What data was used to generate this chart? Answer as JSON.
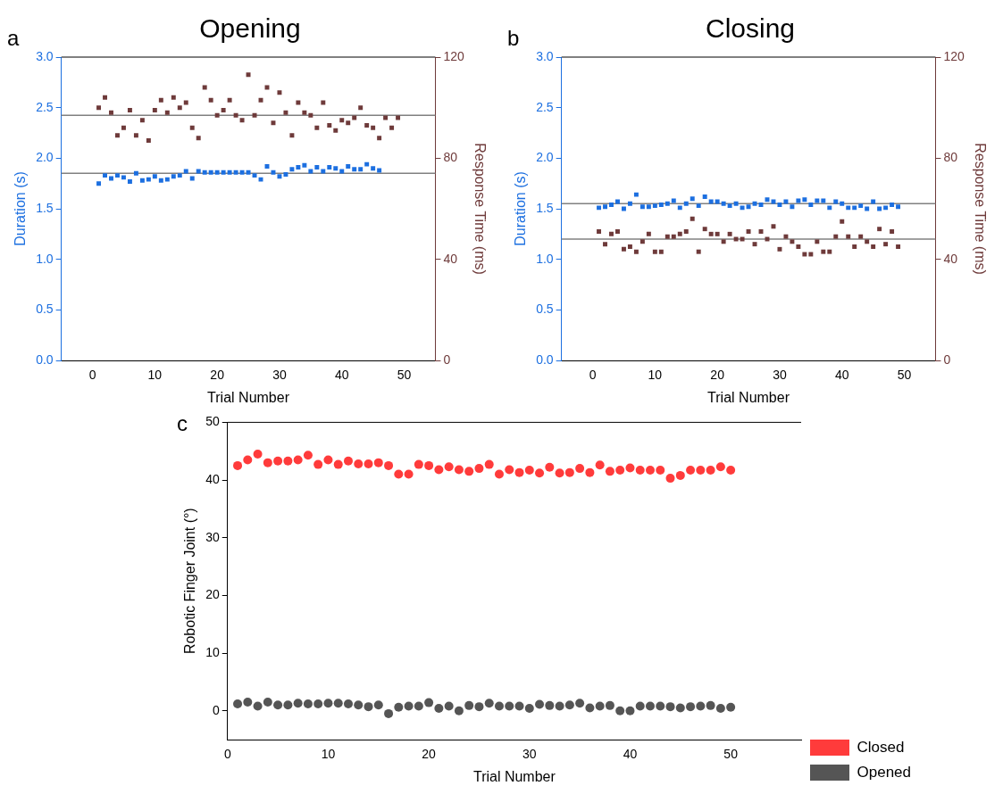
{
  "chart_data": [
    {
      "type": "scatter",
      "title": "Opening",
      "xlabel": "Trial Number",
      "ylabel": "Duration (s)",
      "y2label": "Response Time (ms)",
      "annotations": [
        "a"
      ],
      "marker": "square",
      "grid": false,
      "xlim": [
        -5,
        55
      ],
      "xticks": [
        0,
        10,
        20,
        30,
        40,
        50
      ],
      "ylim": [
        0,
        3
      ],
      "yticks": [
        {
          "value": 0,
          "label": "0.0"
        },
        0.5,
        {
          "value": 1,
          "label": "1.0"
        },
        1.5,
        {
          "value": 2,
          "label": "2.0"
        },
        2.5,
        {
          "value": 3,
          "label": "3.0"
        }
      ],
      "y2lim": [
        0,
        120
      ],
      "y2ticks": [
        0,
        40,
        80,
        120
      ],
      "ref_lines": [
        {
          "axis": "y",
          "value": 1.85,
          "color": "#808080"
        },
        {
          "axis": "y2",
          "value": 97,
          "color": "#808080"
        }
      ],
      "series": [
        {
          "color": "#1c6fe0",
          "x": [
            1,
            2,
            3,
            4,
            5,
            6,
            7,
            8,
            9,
            10,
            11,
            12,
            13,
            14,
            15,
            16,
            17,
            18,
            19,
            20,
            21,
            22,
            23,
            24,
            25,
            26,
            27,
            28,
            29,
            30,
            31,
            32,
            33,
            34,
            35,
            36,
            37,
            38,
            39,
            40,
            41,
            42,
            43,
            44,
            45,
            46
          ],
          "values": [
            1.75,
            1.83,
            1.8,
            1.83,
            1.81,
            1.77,
            1.85,
            1.78,
            1.79,
            1.82,
            1.78,
            1.79,
            1.82,
            1.83,
            1.87,
            1.8,
            1.87,
            1.86,
            1.86,
            1.86,
            1.86,
            1.86,
            1.86,
            1.86,
            1.86,
            1.83,
            1.79,
            1.92,
            1.86,
            1.82,
            1.84,
            1.89,
            1.91,
            1.93,
            1.87,
            1.91,
            1.87,
            1.91,
            1.9,
            1.87,
            1.92,
            1.89,
            1.89,
            1.94,
            1.9,
            1.88
          ]
        },
        {
          "color": "#6e3a3a",
          "axis": "y2",
          "x": [
            1,
            2,
            3,
            4,
            5,
            6,
            7,
            8,
            9,
            10,
            11,
            12,
            13,
            14,
            15,
            16,
            17,
            18,
            19,
            20,
            21,
            22,
            23,
            24,
            25,
            26,
            27,
            28,
            29,
            30,
            31,
            32,
            33,
            34,
            35,
            36,
            37,
            38,
            39,
            40,
            41,
            42,
            43,
            44,
            45,
            46,
            47,
            48,
            49
          ],
          "values": [
            100,
            104,
            98,
            89,
            92,
            99,
            89,
            95,
            87,
            99,
            103,
            98,
            104,
            100,
            102,
            92,
            88,
            108,
            103,
            97,
            99,
            103,
            97,
            95,
            113,
            97,
            103,
            108,
            94,
            106,
            98,
            89,
            102,
            98,
            97,
            92,
            102,
            93,
            91,
            95,
            94,
            96,
            100,
            93,
            92,
            88,
            96,
            92,
            96
          ]
        }
      ]
    },
    {
      "type": "scatter",
      "title": "Closing",
      "xlabel": "Trial Number",
      "ylabel": "Duration (s)",
      "y2label": "Response Time (ms)",
      "annotations": [
        "b"
      ],
      "marker": "square",
      "grid": false,
      "xlim": [
        -5,
        55
      ],
      "xticks": [
        0,
        10,
        20,
        30,
        40,
        50
      ],
      "ylim": [
        0,
        3
      ],
      "yticks": [
        {
          "value": 0,
          "label": "0.0"
        },
        0.5,
        {
          "value": 1,
          "label": "1.0"
        },
        1.5,
        {
          "value": 2,
          "label": "2.0"
        },
        2.5,
        {
          "value": 3,
          "label": "3.0"
        }
      ],
      "y2lim": [
        0,
        120
      ],
      "y2ticks": [
        0,
        40,
        80,
        120
      ],
      "ref_lines": [
        {
          "axis": "y",
          "value": 1.55,
          "color": "#808080"
        },
        {
          "axis": "y2",
          "value": 48,
          "color": "#808080"
        }
      ],
      "series": [
        {
          "color": "#1c6fe0",
          "x": [
            1,
            2,
            3,
            4,
            5,
            6,
            7,
            8,
            9,
            10,
            11,
            12,
            13,
            14,
            15,
            16,
            17,
            18,
            19,
            20,
            21,
            22,
            23,
            24,
            25,
            26,
            27,
            28,
            29,
            30,
            31,
            32,
            33,
            34,
            35,
            36,
            37,
            38,
            39,
            40,
            41,
            42,
            43,
            44,
            45,
            46,
            47,
            48,
            49
          ],
          "values": [
            1.51,
            1.52,
            1.54,
            1.57,
            1.5,
            1.55,
            1.64,
            1.52,
            1.52,
            1.53,
            1.54,
            1.55,
            1.58,
            1.51,
            1.55,
            1.6,
            1.53,
            1.62,
            1.57,
            1.57,
            1.55,
            1.53,
            1.55,
            1.51,
            1.52,
            1.55,
            1.54,
            1.59,
            1.57,
            1.54,
            1.57,
            1.52,
            1.58,
            1.59,
            1.54,
            1.58,
            1.58,
            1.51,
            1.57,
            1.55,
            1.51,
            1.51,
            1.53,
            1.5,
            1.57,
            1.5,
            1.51,
            1.54,
            1.52
          ]
        },
        {
          "color": "#6e3a3a",
          "axis": "y2",
          "x": [
            1,
            2,
            3,
            4,
            5,
            6,
            7,
            8,
            9,
            10,
            11,
            12,
            13,
            14,
            15,
            16,
            17,
            18,
            19,
            20,
            21,
            22,
            23,
            24,
            25,
            26,
            27,
            28,
            29,
            30,
            31,
            32,
            33,
            34,
            35,
            36,
            37,
            38,
            39,
            40,
            41,
            42,
            43,
            44,
            45,
            46,
            47,
            48,
            49
          ],
          "values": [
            51,
            46,
            50,
            51,
            44,
            45,
            43,
            47,
            50,
            43,
            43,
            49,
            49,
            50,
            51,
            56,
            43,
            52,
            50,
            50,
            47,
            50,
            48,
            48,
            51,
            46,
            51,
            48,
            53,
            44,
            49,
            47,
            45,
            42,
            42,
            47,
            43,
            43,
            49,
            55,
            49,
            45,
            49,
            47,
            45,
            52,
            46,
            51,
            45
          ]
        }
      ]
    },
    {
      "type": "scatter",
      "xlabel": "Trial Number",
      "ylabel": "Robotic Finger Joint (°)",
      "annotations": [
        "c"
      ],
      "marker": "circle",
      "grid": false,
      "legend": "bottom right",
      "xlim": [
        0,
        57
      ],
      "xticks": [
        0,
        10,
        20,
        30,
        40,
        50
      ],
      "ylim": [
        -5,
        50
      ],
      "yticks": [
        0,
        10,
        20,
        30,
        40,
        50
      ],
      "series": [
        {
          "name": "Closed",
          "color": "#ff3b3b",
          "x": [
            1,
            2,
            3,
            4,
            5,
            6,
            7,
            8,
            9,
            10,
            11,
            12,
            13,
            14,
            15,
            16,
            17,
            18,
            19,
            20,
            21,
            22,
            23,
            24,
            25,
            26,
            27,
            28,
            29,
            30,
            31,
            32,
            33,
            34,
            35,
            36,
            37,
            38,
            39,
            40,
            41,
            42,
            43,
            44,
            45,
            46,
            47,
            48,
            49,
            50
          ],
          "values": [
            42.5,
            43.5,
            44.5,
            43,
            43.3,
            43.3,
            43.5,
            44.3,
            42.7,
            43.5,
            42.7,
            43.3,
            42.8,
            42.8,
            43,
            42.5,
            41,
            41,
            42.7,
            42.5,
            41.8,
            42.3,
            41.8,
            41.5,
            42,
            42.7,
            41,
            41.8,
            41.3,
            41.7,
            41.2,
            42.2,
            41.2,
            41.3,
            42,
            41.3,
            42.6,
            41.5,
            41.7,
            42.1,
            41.7,
            41.7,
            41.7,
            40.3,
            40.8,
            41.7,
            41.7,
            41.7,
            42.3,
            41.7
          ]
        },
        {
          "name": "Opened",
          "color": "#555555",
          "x": [
            1,
            2,
            3,
            4,
            5,
            6,
            7,
            8,
            9,
            10,
            11,
            12,
            13,
            14,
            15,
            16,
            17,
            18,
            19,
            20,
            21,
            22,
            23,
            24,
            25,
            26,
            27,
            28,
            29,
            30,
            31,
            32,
            33,
            34,
            35,
            36,
            37,
            38,
            39,
            40,
            41,
            42,
            43,
            44,
            45,
            46,
            47,
            48,
            49,
            50
          ],
          "values": [
            1.2,
            1.5,
            0.8,
            1.5,
            1,
            1,
            1.3,
            1.2,
            1.2,
            1.3,
            1.3,
            1.2,
            1,
            0.7,
            1,
            -0.5,
            0.6,
            0.8,
            0.8,
            1.4,
            0.4,
            0.8,
            0,
            0.9,
            0.7,
            1.3,
            0.8,
            0.8,
            0.8,
            0.4,
            1.1,
            0.9,
            0.8,
            1,
            1.3,
            0.5,
            0.8,
            0.9,
            0,
            0,
            0.8,
            0.8,
            0.8,
            0.7,
            0.5,
            0.7,
            0.8,
            0.9,
            0.4,
            0.6
          ]
        }
      ]
    }
  ]
}
